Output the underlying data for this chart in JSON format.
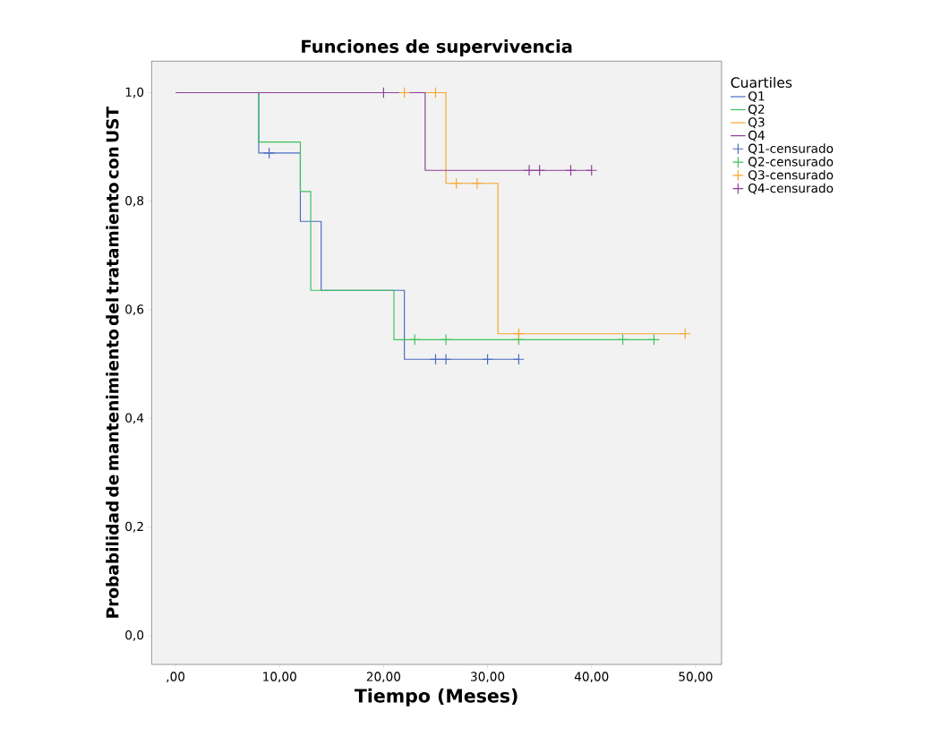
{
  "chart_data": {
    "type": "step",
    "title": "Funciones de supervivencia",
    "xlabel": "Tiempo (Meses)",
    "ylabel": "Probabilidad de mantenimiento del tratamiento con UST",
    "legend_title": "Cuartiles",
    "legend": "right",
    "grid": false,
    "xlim": [
      -2.3,
      52.5
    ],
    "ylim": [
      -0.053,
      1.058
    ],
    "xticks": [
      {
        "value": 0,
        "label": ",00"
      },
      {
        "value": 10,
        "label": "10,00"
      },
      {
        "value": 20,
        "label": "20,00"
      },
      {
        "value": 30,
        "label": "30,00"
      },
      {
        "value": 40,
        "label": "40,00"
      },
      {
        "value": 50,
        "label": "50,00"
      }
    ],
    "yticks": [
      {
        "value": 0,
        "label": "0,0"
      },
      {
        "value": 0.2,
        "label": "0,2"
      },
      {
        "value": 0.4,
        "label": "0,4"
      },
      {
        "value": 0.6,
        "label": "0,6"
      },
      {
        "value": 0.8,
        "label": "0,8"
      },
      {
        "value": 1.0,
        "label": "1,0"
      }
    ],
    "series": [
      {
        "name": "Q1",
        "color": "#4a6cc0",
        "x": [
          0,
          8,
          12,
          14,
          22,
          33
        ],
        "values": [
          1.0,
          0.889,
          0.763,
          0.636,
          0.509,
          0.509
        ]
      },
      {
        "name": "Q2",
        "color": "#3cc25a",
        "x": [
          0,
          8,
          12,
          13,
          21,
          46
        ],
        "values": [
          1.0,
          0.909,
          0.818,
          0.636,
          0.545,
          0.545
        ]
      },
      {
        "name": "Q3",
        "color": "#f5a52a",
        "x": [
          0,
          26,
          31,
          49
        ],
        "values": [
          1.0,
          0.833,
          0.556,
          0.556
        ]
      },
      {
        "name": "Q4",
        "color": "#8e3f98",
        "x": [
          0,
          24,
          40
        ],
        "values": [
          1.0,
          0.857,
          0.857
        ]
      },
      {
        "name": "Q1-censurado",
        "type": "scatter",
        "marker": "cross",
        "color": "#4a6cc0",
        "x": [
          9,
          25,
          26,
          30,
          33
        ],
        "values": [
          0.889,
          0.509,
          0.509,
          0.509,
          0.509
        ]
      },
      {
        "name": "Q2-censurado",
        "type": "scatter",
        "marker": "cross",
        "color": "#3cc25a",
        "x": [
          23,
          26,
          33,
          43,
          46
        ],
        "values": [
          0.545,
          0.545,
          0.545,
          0.545,
          0.545
        ]
      },
      {
        "name": "Q3-censurado",
        "type": "scatter",
        "marker": "cross",
        "color": "#f5a52a",
        "x": [
          22,
          25,
          27,
          29,
          33,
          49
        ],
        "values": [
          1.0,
          1.0,
          0.833,
          0.833,
          0.556,
          0.556
        ]
      },
      {
        "name": "Q4-censurado",
        "type": "scatter",
        "marker": "cross",
        "color": "#8e3f98",
        "x": [
          20,
          34,
          35,
          38,
          40
        ],
        "values": [
          1.0,
          0.857,
          0.857,
          0.857,
          0.857
        ]
      }
    ]
  }
}
